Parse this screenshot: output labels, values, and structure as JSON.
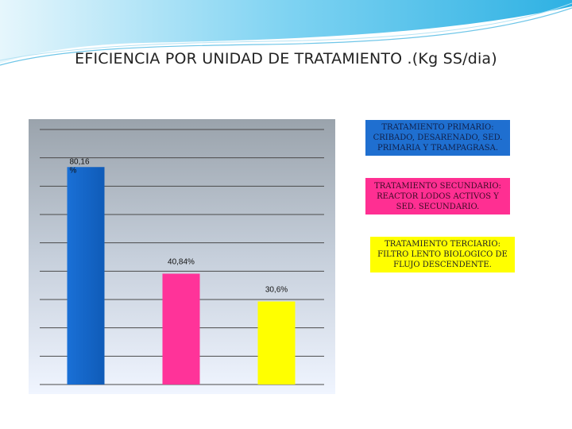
{
  "title": "EFICIENCIA POR UNIDAD DE TRATAMIENTO .(Kg SS/dia)",
  "colors": {
    "bar_primary": "#1467c9",
    "bar_secondary": "#ff3399",
    "bar_tertiary": "#ffff00",
    "plot_bg_top": "#9aa3ac",
    "plot_bg_bottom": "#f0f5ff",
    "swoosh": "#3cb6e6"
  },
  "chart_data": {
    "type": "bar",
    "categories": [
      "TRATAMIENTO PRIMARIO",
      "TRATAMIENTO SECUNDARIO",
      "TRATAMIENTO TERCIARIO"
    ],
    "values": [
      80.16,
      40.84,
      30.6
    ],
    "data_labels": [
      "80,16 %",
      "40,84%",
      "30,6%"
    ],
    "ylim": [
      0,
      94
    ],
    "grid": true,
    "legend_placement": "right",
    "legend": [
      "TRATAMIENTO PRIMARIO: CRIBADO, DESARENADO, SED. PRIMARIA Y TRAMPAGRASA.",
      "TRATAMIENTO SECUNDARIO: REACTOR LODOS ACTIVOS Y SED. SECUNDARIO.",
      "TRATAMIENTO TERCIARIO: FILTRO LENTO BIOLOGICO DE FLUJO DESCENDENTE."
    ]
  }
}
